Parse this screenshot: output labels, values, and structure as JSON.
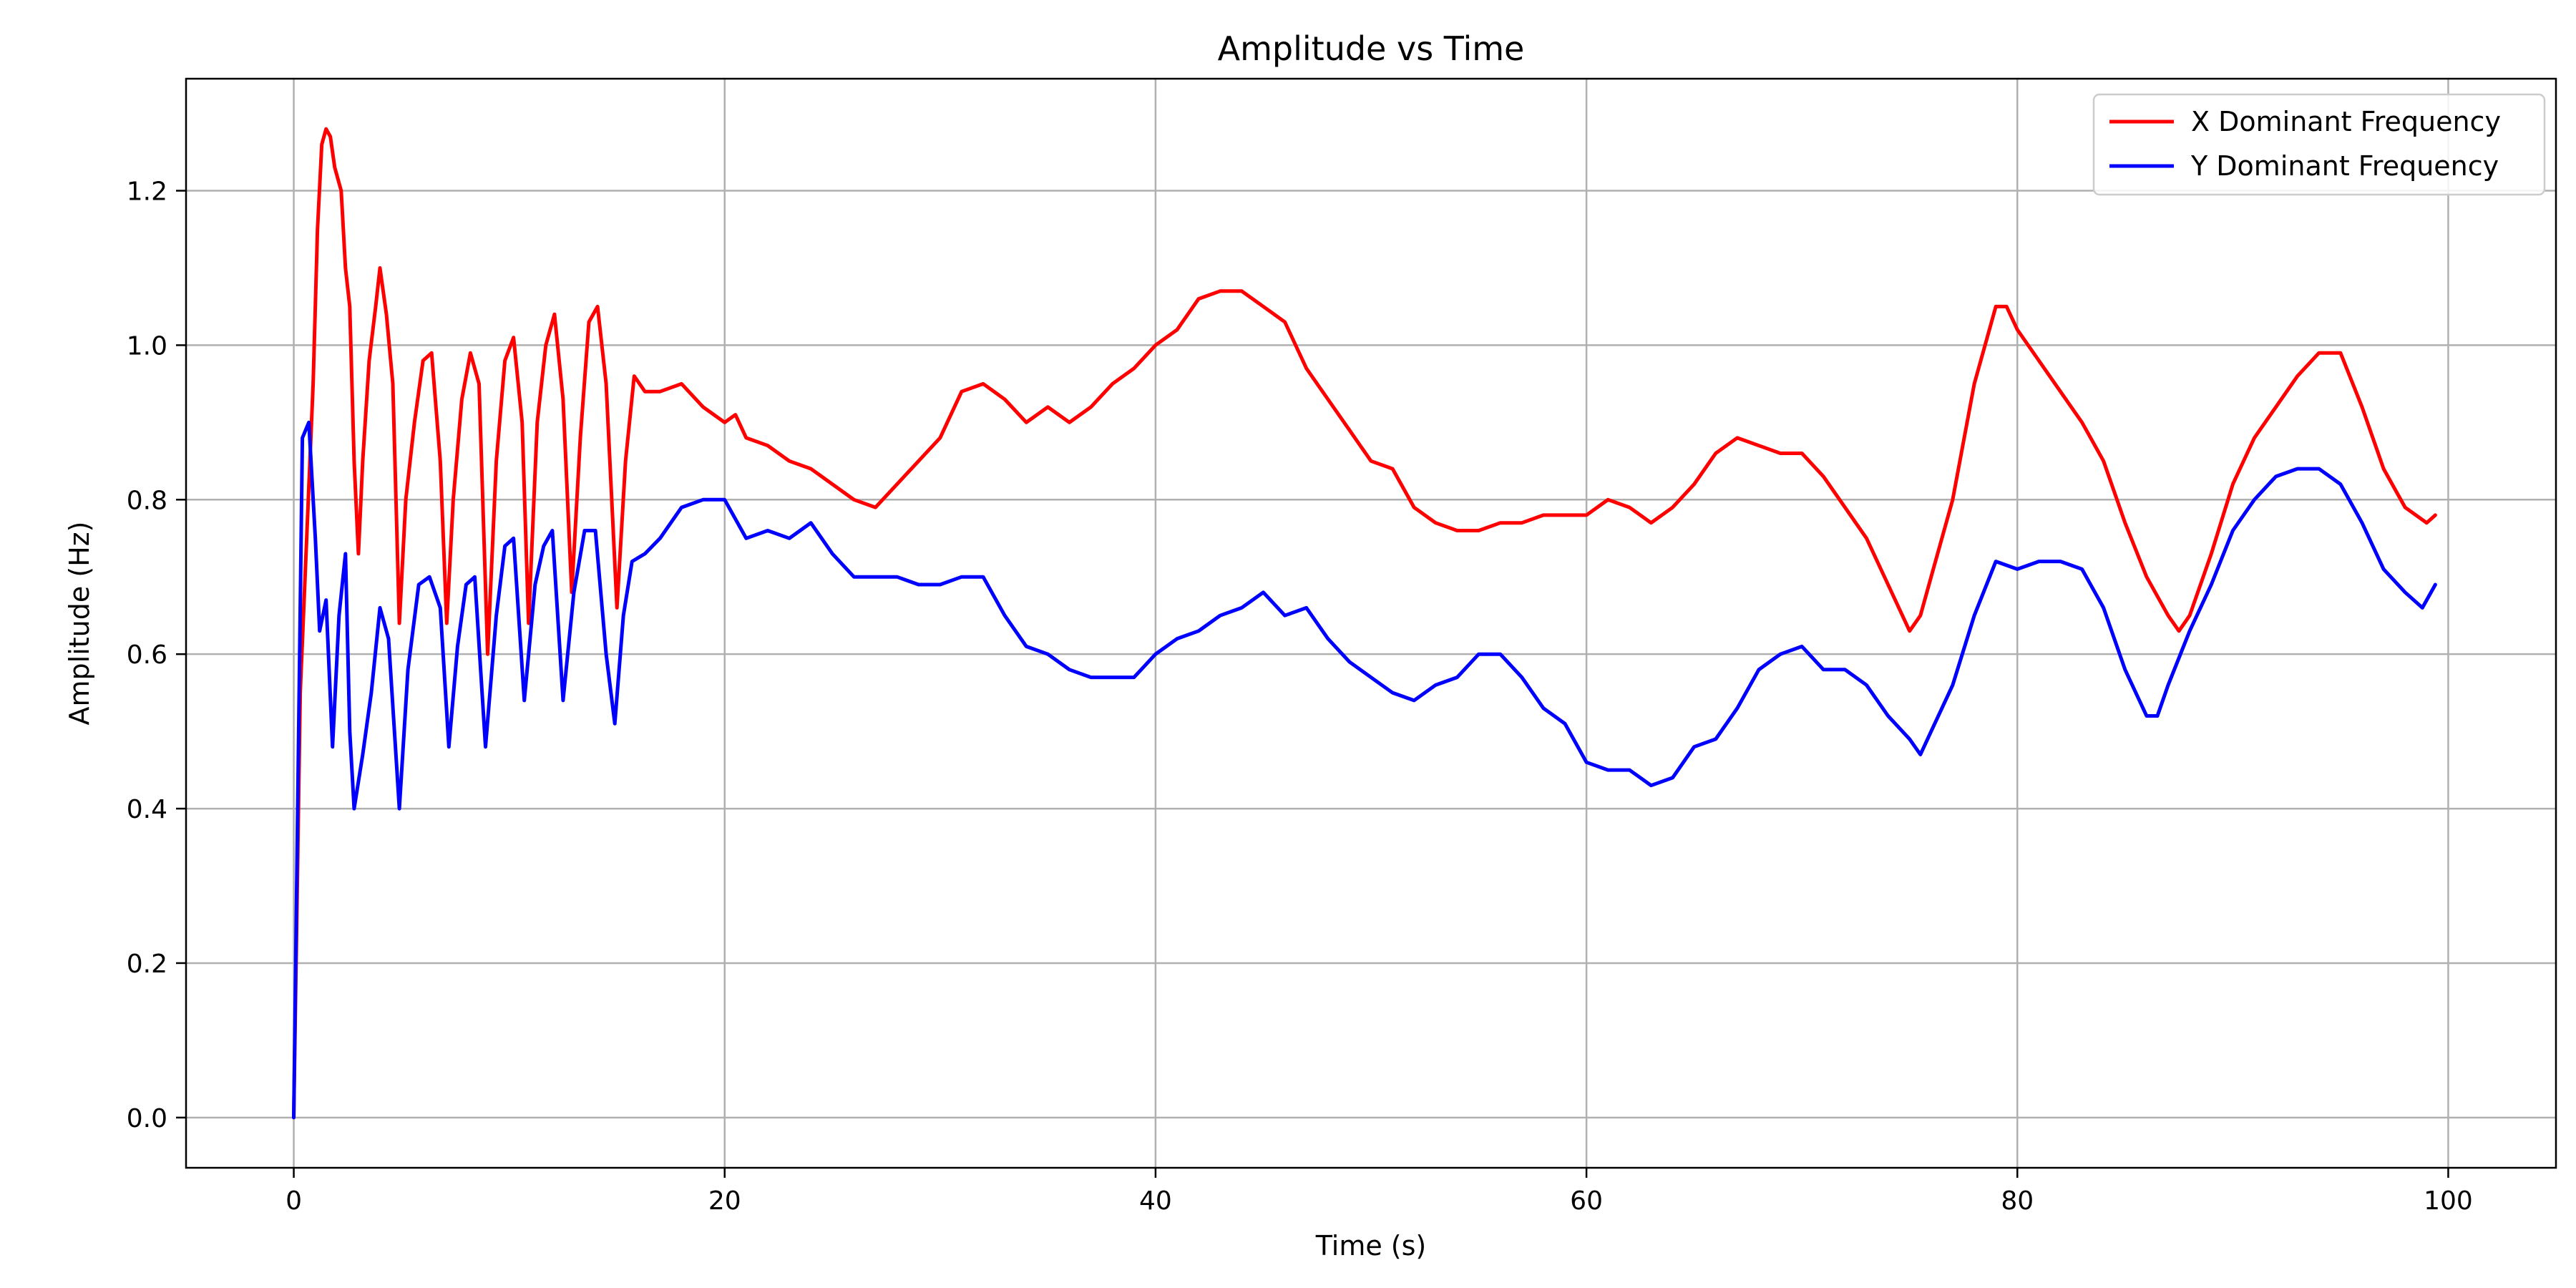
{
  "chart_data": {
    "type": "line",
    "title": "Amplitude vs Time",
    "xlabel": "Time (s)",
    "ylabel": "Amplitude (Hz)",
    "xlim": [
      -5,
      105
    ],
    "ylim": [
      -0.065,
      1.345
    ],
    "xticks": [
      0,
      20,
      40,
      60,
      80,
      100
    ],
    "yticks": [
      0.0,
      0.2,
      0.4,
      0.6,
      0.8,
      1.0,
      1.2
    ],
    "xtick_labels": [
      "0",
      "20",
      "40",
      "60",
      "80",
      "100"
    ],
    "ytick_labels": [
      "0.0",
      "0.2",
      "0.4",
      "0.6",
      "0.8",
      "1.0",
      "1.2"
    ],
    "grid": true,
    "legend_position": "top-right",
    "series": [
      {
        "name": "X Dominant Frequency",
        "color": "#ff0000",
        "points": [
          [
            0.0,
            0.0
          ],
          [
            0.3,
            0.55
          ],
          [
            0.6,
            0.75
          ],
          [
            0.9,
            0.95
          ],
          [
            1.1,
            1.15
          ],
          [
            1.3,
            1.26
          ],
          [
            1.5,
            1.28
          ],
          [
            1.7,
            1.27
          ],
          [
            1.9,
            1.23
          ],
          [
            2.2,
            1.2
          ],
          [
            2.4,
            1.1
          ],
          [
            2.6,
            1.05
          ],
          [
            2.8,
            0.85
          ],
          [
            3.0,
            0.73
          ],
          [
            3.2,
            0.85
          ],
          [
            3.5,
            0.98
          ],
          [
            3.8,
            1.05
          ],
          [
            4.0,
            1.1
          ],
          [
            4.3,
            1.04
          ],
          [
            4.6,
            0.95
          ],
          [
            4.9,
            0.64
          ],
          [
            5.2,
            0.8
          ],
          [
            5.6,
            0.9
          ],
          [
            6.0,
            0.98
          ],
          [
            6.4,
            0.99
          ],
          [
            6.8,
            0.85
          ],
          [
            7.1,
            0.64
          ],
          [
            7.4,
            0.8
          ],
          [
            7.8,
            0.93
          ],
          [
            8.2,
            0.99
          ],
          [
            8.6,
            0.95
          ],
          [
            9.0,
            0.6
          ],
          [
            9.4,
            0.85
          ],
          [
            9.8,
            0.98
          ],
          [
            10.2,
            1.01
          ],
          [
            10.6,
            0.9
          ],
          [
            10.9,
            0.64
          ],
          [
            11.3,
            0.9
          ],
          [
            11.7,
            1.0
          ],
          [
            12.1,
            1.04
          ],
          [
            12.5,
            0.93
          ],
          [
            12.9,
            0.68
          ],
          [
            13.3,
            0.88
          ],
          [
            13.7,
            1.03
          ],
          [
            14.1,
            1.05
          ],
          [
            14.5,
            0.95
          ],
          [
            15.0,
            0.66
          ],
          [
            15.4,
            0.85
          ],
          [
            15.8,
            0.96
          ],
          [
            16.3,
            0.94
          ],
          [
            17.0,
            0.94
          ],
          [
            18.0,
            0.95
          ],
          [
            19.0,
            0.92
          ],
          [
            20.0,
            0.9
          ],
          [
            20.5,
            0.91
          ],
          [
            21.0,
            0.88
          ],
          [
            22.0,
            0.87
          ],
          [
            23.0,
            0.85
          ],
          [
            24.0,
            0.84
          ],
          [
            25.0,
            0.82
          ],
          [
            26.0,
            0.8
          ],
          [
            27.0,
            0.79
          ],
          [
            28.0,
            0.82
          ],
          [
            29.0,
            0.85
          ],
          [
            30.0,
            0.88
          ],
          [
            31.0,
            0.94
          ],
          [
            32.0,
            0.95
          ],
          [
            33.0,
            0.93
          ],
          [
            34.0,
            0.9
          ],
          [
            35.0,
            0.92
          ],
          [
            36.0,
            0.9
          ],
          [
            37.0,
            0.92
          ],
          [
            38.0,
            0.95
          ],
          [
            39.0,
            0.97
          ],
          [
            40.0,
            1.0
          ],
          [
            41.0,
            1.02
          ],
          [
            42.0,
            1.06
          ],
          [
            43.0,
            1.07
          ],
          [
            44.0,
            1.07
          ],
          [
            45.0,
            1.05
          ],
          [
            46.0,
            1.03
          ],
          [
            47.0,
            0.97
          ],
          [
            48.0,
            0.93
          ],
          [
            49.0,
            0.89
          ],
          [
            50.0,
            0.85
          ],
          [
            51.0,
            0.84
          ],
          [
            52.0,
            0.79
          ],
          [
            53.0,
            0.77
          ],
          [
            54.0,
            0.76
          ],
          [
            55.0,
            0.76
          ],
          [
            56.0,
            0.77
          ],
          [
            57.0,
            0.77
          ],
          [
            58.0,
            0.78
          ],
          [
            59.0,
            0.78
          ],
          [
            60.0,
            0.78
          ],
          [
            61.0,
            0.8
          ],
          [
            62.0,
            0.79
          ],
          [
            63.0,
            0.77
          ],
          [
            64.0,
            0.79
          ],
          [
            65.0,
            0.82
          ],
          [
            66.0,
            0.86
          ],
          [
            67.0,
            0.88
          ],
          [
            68.0,
            0.87
          ],
          [
            69.0,
            0.86
          ],
          [
            70.0,
            0.86
          ],
          [
            71.0,
            0.83
          ],
          [
            72.0,
            0.79
          ],
          [
            73.0,
            0.75
          ],
          [
            74.0,
            0.69
          ],
          [
            75.0,
            0.63
          ],
          [
            75.5,
            0.65
          ],
          [
            76.0,
            0.7
          ],
          [
            77.0,
            0.8
          ],
          [
            78.0,
            0.95
          ],
          [
            79.0,
            1.05
          ],
          [
            79.5,
            1.05
          ],
          [
            80.0,
            1.02
          ],
          [
            81.0,
            0.98
          ],
          [
            82.0,
            0.94
          ],
          [
            83.0,
            0.9
          ],
          [
            84.0,
            0.85
          ],
          [
            85.0,
            0.77
          ],
          [
            86.0,
            0.7
          ],
          [
            87.0,
            0.65
          ],
          [
            87.5,
            0.63
          ],
          [
            88.0,
            0.65
          ],
          [
            89.0,
            0.73
          ],
          [
            90.0,
            0.82
          ],
          [
            91.0,
            0.88
          ],
          [
            92.0,
            0.92
          ],
          [
            93.0,
            0.96
          ],
          [
            94.0,
            0.99
          ],
          [
            95.0,
            0.99
          ],
          [
            96.0,
            0.92
          ],
          [
            97.0,
            0.84
          ],
          [
            98.0,
            0.79
          ],
          [
            99.0,
            0.77
          ],
          [
            99.4,
            0.78
          ]
        ]
      },
      {
        "name": "Y Dominant Frequency",
        "color": "#0000ff",
        "points": [
          [
            0.0,
            0.0
          ],
          [
            0.4,
            0.88
          ],
          [
            0.7,
            0.9
          ],
          [
            1.0,
            0.75
          ],
          [
            1.2,
            0.63
          ],
          [
            1.5,
            0.67
          ],
          [
            1.8,
            0.48
          ],
          [
            2.1,
            0.65
          ],
          [
            2.4,
            0.73
          ],
          [
            2.6,
            0.5
          ],
          [
            2.8,
            0.4
          ],
          [
            3.2,
            0.47
          ],
          [
            3.6,
            0.55
          ],
          [
            4.0,
            0.66
          ],
          [
            4.4,
            0.62
          ],
          [
            4.9,
            0.4
          ],
          [
            5.3,
            0.58
          ],
          [
            5.8,
            0.69
          ],
          [
            6.3,
            0.7
          ],
          [
            6.8,
            0.66
          ],
          [
            7.2,
            0.48
          ],
          [
            7.6,
            0.61
          ],
          [
            8.0,
            0.69
          ],
          [
            8.4,
            0.7
          ],
          [
            8.9,
            0.48
          ],
          [
            9.4,
            0.65
          ],
          [
            9.8,
            0.74
          ],
          [
            10.2,
            0.75
          ],
          [
            10.7,
            0.54
          ],
          [
            11.2,
            0.69
          ],
          [
            11.6,
            0.74
          ],
          [
            12.0,
            0.76
          ],
          [
            12.5,
            0.54
          ],
          [
            13.0,
            0.68
          ],
          [
            13.5,
            0.76
          ],
          [
            14.0,
            0.76
          ],
          [
            14.5,
            0.6
          ],
          [
            14.9,
            0.51
          ],
          [
            15.3,
            0.65
          ],
          [
            15.7,
            0.72
          ],
          [
            16.3,
            0.73
          ],
          [
            17.0,
            0.75
          ],
          [
            18.0,
            0.79
          ],
          [
            19.0,
            0.8
          ],
          [
            20.0,
            0.8
          ],
          [
            21.0,
            0.75
          ],
          [
            22.0,
            0.76
          ],
          [
            23.0,
            0.75
          ],
          [
            24.0,
            0.77
          ],
          [
            25.0,
            0.73
          ],
          [
            26.0,
            0.7
          ],
          [
            27.0,
            0.7
          ],
          [
            28.0,
            0.7
          ],
          [
            29.0,
            0.69
          ],
          [
            30.0,
            0.69
          ],
          [
            31.0,
            0.7
          ],
          [
            32.0,
            0.7
          ],
          [
            33.0,
            0.65
          ],
          [
            34.0,
            0.61
          ],
          [
            35.0,
            0.6
          ],
          [
            36.0,
            0.58
          ],
          [
            37.0,
            0.57
          ],
          [
            38.0,
            0.57
          ],
          [
            39.0,
            0.57
          ],
          [
            40.0,
            0.6
          ],
          [
            41.0,
            0.62
          ],
          [
            42.0,
            0.63
          ],
          [
            43.0,
            0.65
          ],
          [
            44.0,
            0.66
          ],
          [
            45.0,
            0.68
          ],
          [
            46.0,
            0.65
          ],
          [
            47.0,
            0.66
          ],
          [
            48.0,
            0.62
          ],
          [
            49.0,
            0.59
          ],
          [
            50.0,
            0.57
          ],
          [
            51.0,
            0.55
          ],
          [
            52.0,
            0.54
          ],
          [
            53.0,
            0.56
          ],
          [
            54.0,
            0.57
          ],
          [
            55.0,
            0.6
          ],
          [
            56.0,
            0.6
          ],
          [
            57.0,
            0.57
          ],
          [
            58.0,
            0.53
          ],
          [
            59.0,
            0.51
          ],
          [
            60.0,
            0.46
          ],
          [
            61.0,
            0.45
          ],
          [
            62.0,
            0.45
          ],
          [
            63.0,
            0.43
          ],
          [
            64.0,
            0.44
          ],
          [
            65.0,
            0.48
          ],
          [
            66.0,
            0.49
          ],
          [
            67.0,
            0.53
          ],
          [
            68.0,
            0.58
          ],
          [
            69.0,
            0.6
          ],
          [
            70.0,
            0.61
          ],
          [
            71.0,
            0.58
          ],
          [
            72.0,
            0.58
          ],
          [
            73.0,
            0.56
          ],
          [
            74.0,
            0.52
          ],
          [
            75.0,
            0.49
          ],
          [
            75.5,
            0.47
          ],
          [
            76.0,
            0.5
          ],
          [
            77.0,
            0.56
          ],
          [
            78.0,
            0.65
          ],
          [
            79.0,
            0.72
          ],
          [
            80.0,
            0.71
          ],
          [
            81.0,
            0.72
          ],
          [
            82.0,
            0.72
          ],
          [
            83.0,
            0.71
          ],
          [
            84.0,
            0.66
          ],
          [
            85.0,
            0.58
          ],
          [
            86.0,
            0.52
          ],
          [
            86.5,
            0.52
          ],
          [
            87.0,
            0.56
          ],
          [
            88.0,
            0.63
          ],
          [
            89.0,
            0.69
          ],
          [
            90.0,
            0.76
          ],
          [
            91.0,
            0.8
          ],
          [
            92.0,
            0.83
          ],
          [
            93.0,
            0.84
          ],
          [
            94.0,
            0.84
          ],
          [
            95.0,
            0.82
          ],
          [
            96.0,
            0.77
          ],
          [
            97.0,
            0.71
          ],
          [
            98.0,
            0.68
          ],
          [
            98.8,
            0.66
          ],
          [
            99.4,
            0.69
          ]
        ]
      }
    ]
  }
}
